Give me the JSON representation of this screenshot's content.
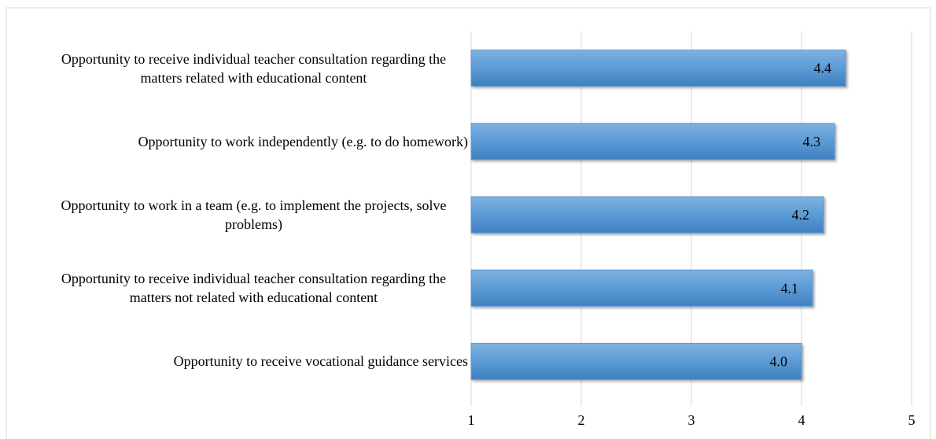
{
  "chart_data": {
    "type": "bar",
    "orientation": "horizontal",
    "categories": [
      "Opportunity to receive individual teacher consultation regarding the matters related with educational content",
      "Opportunity to work independently (e.g. to do homework)",
      "Opportunity to work in a team (e.g. to implement the projects, solve problems)",
      "Opportunity to receive individual teacher consultation regarding the matters not related with educational content",
      "Opportunity to receive vocational guidance services"
    ],
    "values": [
      4.4,
      4.3,
      4.2,
      4.1,
      4
    ],
    "value_labels": [
      "4.4",
      "4.3",
      "4.2",
      "4.1",
      "4.0"
    ],
    "color": "#5b9bd5",
    "xlim": [
      1,
      5
    ],
    "xticks": [
      1,
      2,
      3,
      4,
      5
    ],
    "grid": true
  }
}
